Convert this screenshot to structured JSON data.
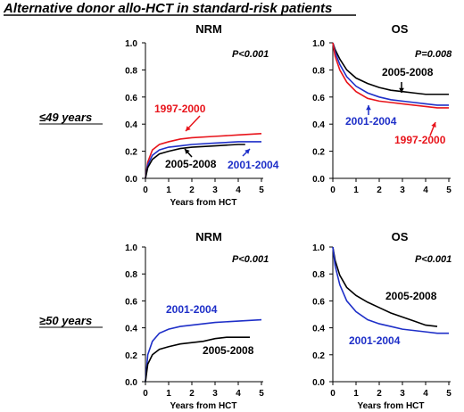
{
  "figure": {
    "title": "Alternative donor allo-HCT in standard-risk patients",
    "row_labels": [
      "≤49 years",
      "≥50 years"
    ]
  },
  "colors": {
    "1997-2000": "#e8141b",
    "2001-2004": "#1e2fc8",
    "2005-2008": "#000000",
    "axis": "#000000"
  },
  "chart_data": [
    {
      "type": "line",
      "title": "NRM",
      "pvalue": "P<0.001",
      "xlabel": "Years from HCT",
      "ylabel": "",
      "xlim": [
        0,
        5
      ],
      "ylim": [
        0,
        1
      ],
      "xticks": [
        "0",
        "1",
        "2",
        "3",
        "4",
        "5"
      ],
      "yticks": [
        "0.0",
        "0.2",
        "0.4",
        "0.6",
        "0.8",
        "1.0"
      ],
      "series": [
        {
          "name": "1997-2000",
          "x": [
            0,
            0.1,
            0.3,
            0.6,
            1,
            1.5,
            2,
            3,
            4,
            5
          ],
          "y": [
            0,
            0.12,
            0.21,
            0.25,
            0.27,
            0.29,
            0.3,
            0.31,
            0.32,
            0.33
          ]
        },
        {
          "name": "2001-2004",
          "x": [
            0,
            0.1,
            0.3,
            0.6,
            1,
            1.5,
            2,
            3,
            4,
            5
          ],
          "y": [
            0,
            0.1,
            0.17,
            0.21,
            0.23,
            0.24,
            0.25,
            0.26,
            0.27,
            0.27
          ]
        },
        {
          "name": "2005-2008",
          "x": [
            0,
            0.1,
            0.3,
            0.6,
            1,
            1.5,
            2,
            3,
            4,
            4.3
          ],
          "y": [
            0,
            0.08,
            0.14,
            0.18,
            0.2,
            0.22,
            0.23,
            0.24,
            0.25,
            0.25
          ]
        }
      ],
      "annotations": [
        "1997-2000",
        "2005-2008",
        "2001-2004"
      ]
    },
    {
      "type": "line",
      "title": "OS",
      "pvalue": "P=0.008",
      "xlabel": "",
      "ylabel": "",
      "xlim": [
        0,
        5
      ],
      "ylim": [
        0,
        1
      ],
      "xticks": [
        "0",
        "1",
        "2",
        "3",
        "4",
        "5"
      ],
      "yticks": [
        "0.0",
        "0.2",
        "0.4",
        "0.6",
        "0.8",
        "1.0"
      ],
      "series": [
        {
          "name": "2005-2008",
          "x": [
            0,
            0.1,
            0.3,
            0.6,
            1,
            1.5,
            2,
            2.5,
            3,
            3.5,
            4,
            4.5,
            5
          ],
          "y": [
            1,
            0.95,
            0.88,
            0.8,
            0.74,
            0.7,
            0.67,
            0.65,
            0.64,
            0.63,
            0.62,
            0.62,
            0.62
          ]
        },
        {
          "name": "2001-2004",
          "x": [
            0,
            0.1,
            0.3,
            0.6,
            1,
            1.5,
            2,
            2.5,
            3,
            3.5,
            4,
            4.5,
            5
          ],
          "y": [
            1,
            0.93,
            0.84,
            0.75,
            0.68,
            0.63,
            0.6,
            0.58,
            0.57,
            0.56,
            0.55,
            0.54,
            0.54
          ]
        },
        {
          "name": "1997-2000",
          "x": [
            0,
            0.1,
            0.3,
            0.6,
            1,
            1.5,
            2,
            2.5,
            3,
            3.5,
            4,
            4.5,
            5
          ],
          "y": [
            1,
            0.9,
            0.8,
            0.71,
            0.64,
            0.59,
            0.57,
            0.56,
            0.55,
            0.54,
            0.53,
            0.52,
            0.52
          ]
        }
      ],
      "annotations": [
        "2005-2008",
        "2001-2004",
        "1997-2000"
      ]
    },
    {
      "type": "line",
      "title": "NRM",
      "pvalue": "P<0.001",
      "xlabel": "Years from HCT",
      "ylabel": "",
      "xlim": [
        0,
        5
      ],
      "ylim": [
        0,
        1
      ],
      "xticks": [
        "0",
        "1",
        "2",
        "3",
        "4",
        "5"
      ],
      "yticks": [
        "0.0",
        "0.2",
        "0.4",
        "0.6",
        "0.8",
        "1.0"
      ],
      "series": [
        {
          "name": "2001-2004",
          "x": [
            0,
            0.1,
            0.3,
            0.6,
            1,
            1.5,
            2,
            3,
            4,
            5
          ],
          "y": [
            0,
            0.2,
            0.3,
            0.36,
            0.39,
            0.41,
            0.42,
            0.44,
            0.45,
            0.46
          ]
        },
        {
          "name": "2005-2008",
          "x": [
            0,
            0.1,
            0.3,
            0.6,
            1,
            1.5,
            2,
            2.5,
            3,
            3.5,
            4.5
          ],
          "y": [
            0,
            0.13,
            0.2,
            0.24,
            0.26,
            0.28,
            0.29,
            0.3,
            0.32,
            0.33,
            0.33
          ]
        }
      ],
      "annotations": [
        "2001-2004",
        "2005-2008"
      ]
    },
    {
      "type": "line",
      "title": "OS",
      "pvalue": "P<0.001",
      "xlabel": "Years from HCT",
      "ylabel": "",
      "xlim": [
        0,
        5
      ],
      "ylim": [
        0,
        1
      ],
      "xticks": [
        "0",
        "1",
        "2",
        "3",
        "4",
        "5"
      ],
      "yticks": [
        "0.0",
        "0.2",
        "0.4",
        "0.6",
        "0.8",
        "1.0"
      ],
      "series": [
        {
          "name": "2005-2008",
          "x": [
            0,
            0.1,
            0.3,
            0.6,
            1,
            1.5,
            2,
            2.5,
            3,
            3.5,
            4,
            4.5
          ],
          "y": [
            1,
            0.9,
            0.79,
            0.7,
            0.64,
            0.59,
            0.55,
            0.51,
            0.48,
            0.45,
            0.42,
            0.41
          ]
        },
        {
          "name": "2001-2004",
          "x": [
            0,
            0.1,
            0.3,
            0.6,
            1,
            1.5,
            2,
            2.5,
            3,
            3.5,
            4,
            4.5,
            5
          ],
          "y": [
            1,
            0.86,
            0.72,
            0.6,
            0.52,
            0.46,
            0.43,
            0.41,
            0.39,
            0.38,
            0.37,
            0.36,
            0.36
          ]
        }
      ],
      "annotations": [
        "2005-2008",
        "2001-2004"
      ]
    }
  ]
}
